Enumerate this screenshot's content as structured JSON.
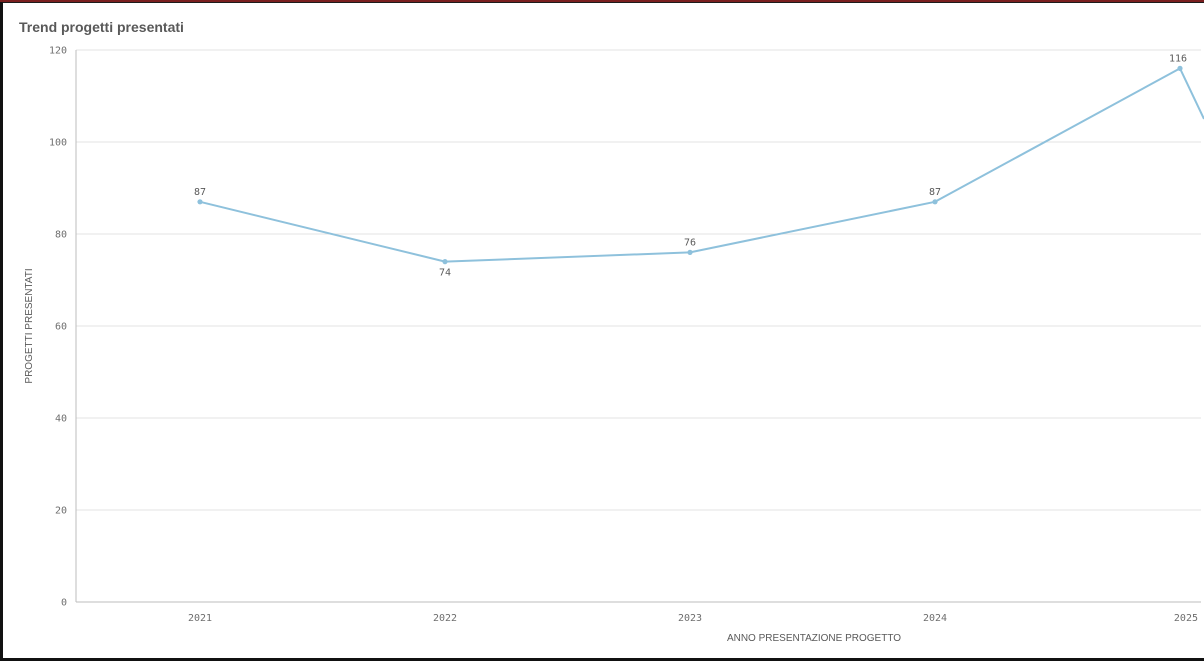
{
  "chart_data": {
    "type": "line",
    "title": "Trend progetti presentati",
    "xlabel": "ANNO PRESENTAZIONE PROGETTO",
    "ylabel": "PROGETTI PRESENTATI",
    "x": [
      "2021",
      "2022",
      "2023",
      "2024",
      "2025"
    ],
    "series": [
      {
        "values": [
          87,
          74,
          76,
          87,
          116
        ],
        "color": "#8ec1dc"
      }
    ],
    "ylim": [
      0,
      120
    ],
    "yticks": [
      0,
      20,
      40,
      60,
      80,
      100,
      120
    ],
    "grid": true,
    "data_labels": true
  }
}
